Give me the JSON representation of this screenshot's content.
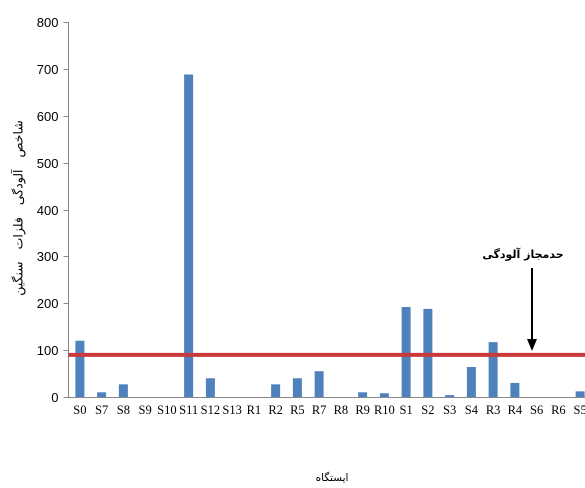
{
  "chart_data": {
    "type": "bar",
    "xlabel": "ایستگاه",
    "ylabel": "شاخص آلودگی فلزات سنگین",
    "categories": [
      "S0",
      "S7",
      "S8",
      "S9",
      "S10",
      "S11",
      "S12",
      "S13",
      "R1",
      "R2",
      "R5",
      "R7",
      "R8",
      "R9",
      "R10",
      "S1",
      "S2",
      "S3",
      "S4",
      "R3",
      "R4",
      "S6",
      "R6",
      "S5"
    ],
    "values": [
      120,
      10,
      27,
      0,
      0,
      688,
      40,
      0,
      0,
      27,
      40,
      55,
      0,
      10,
      8,
      192,
      188,
      4,
      64,
      117,
      30,
      0,
      0,
      12
    ],
    "ylim": [
      0,
      800
    ],
    "yticks": [
      0,
      100,
      200,
      300,
      400,
      500,
      600,
      700,
      800
    ],
    "grid": false,
    "legend": "none",
    "reference_line": {
      "value": 90,
      "label": "حدمجاز آلودگی"
    },
    "colors": {
      "bar": "#4f81bd",
      "reference_line": "#c93a3a",
      "axis": "#888888",
      "text": "#000000",
      "arrow": "#000000"
    }
  }
}
